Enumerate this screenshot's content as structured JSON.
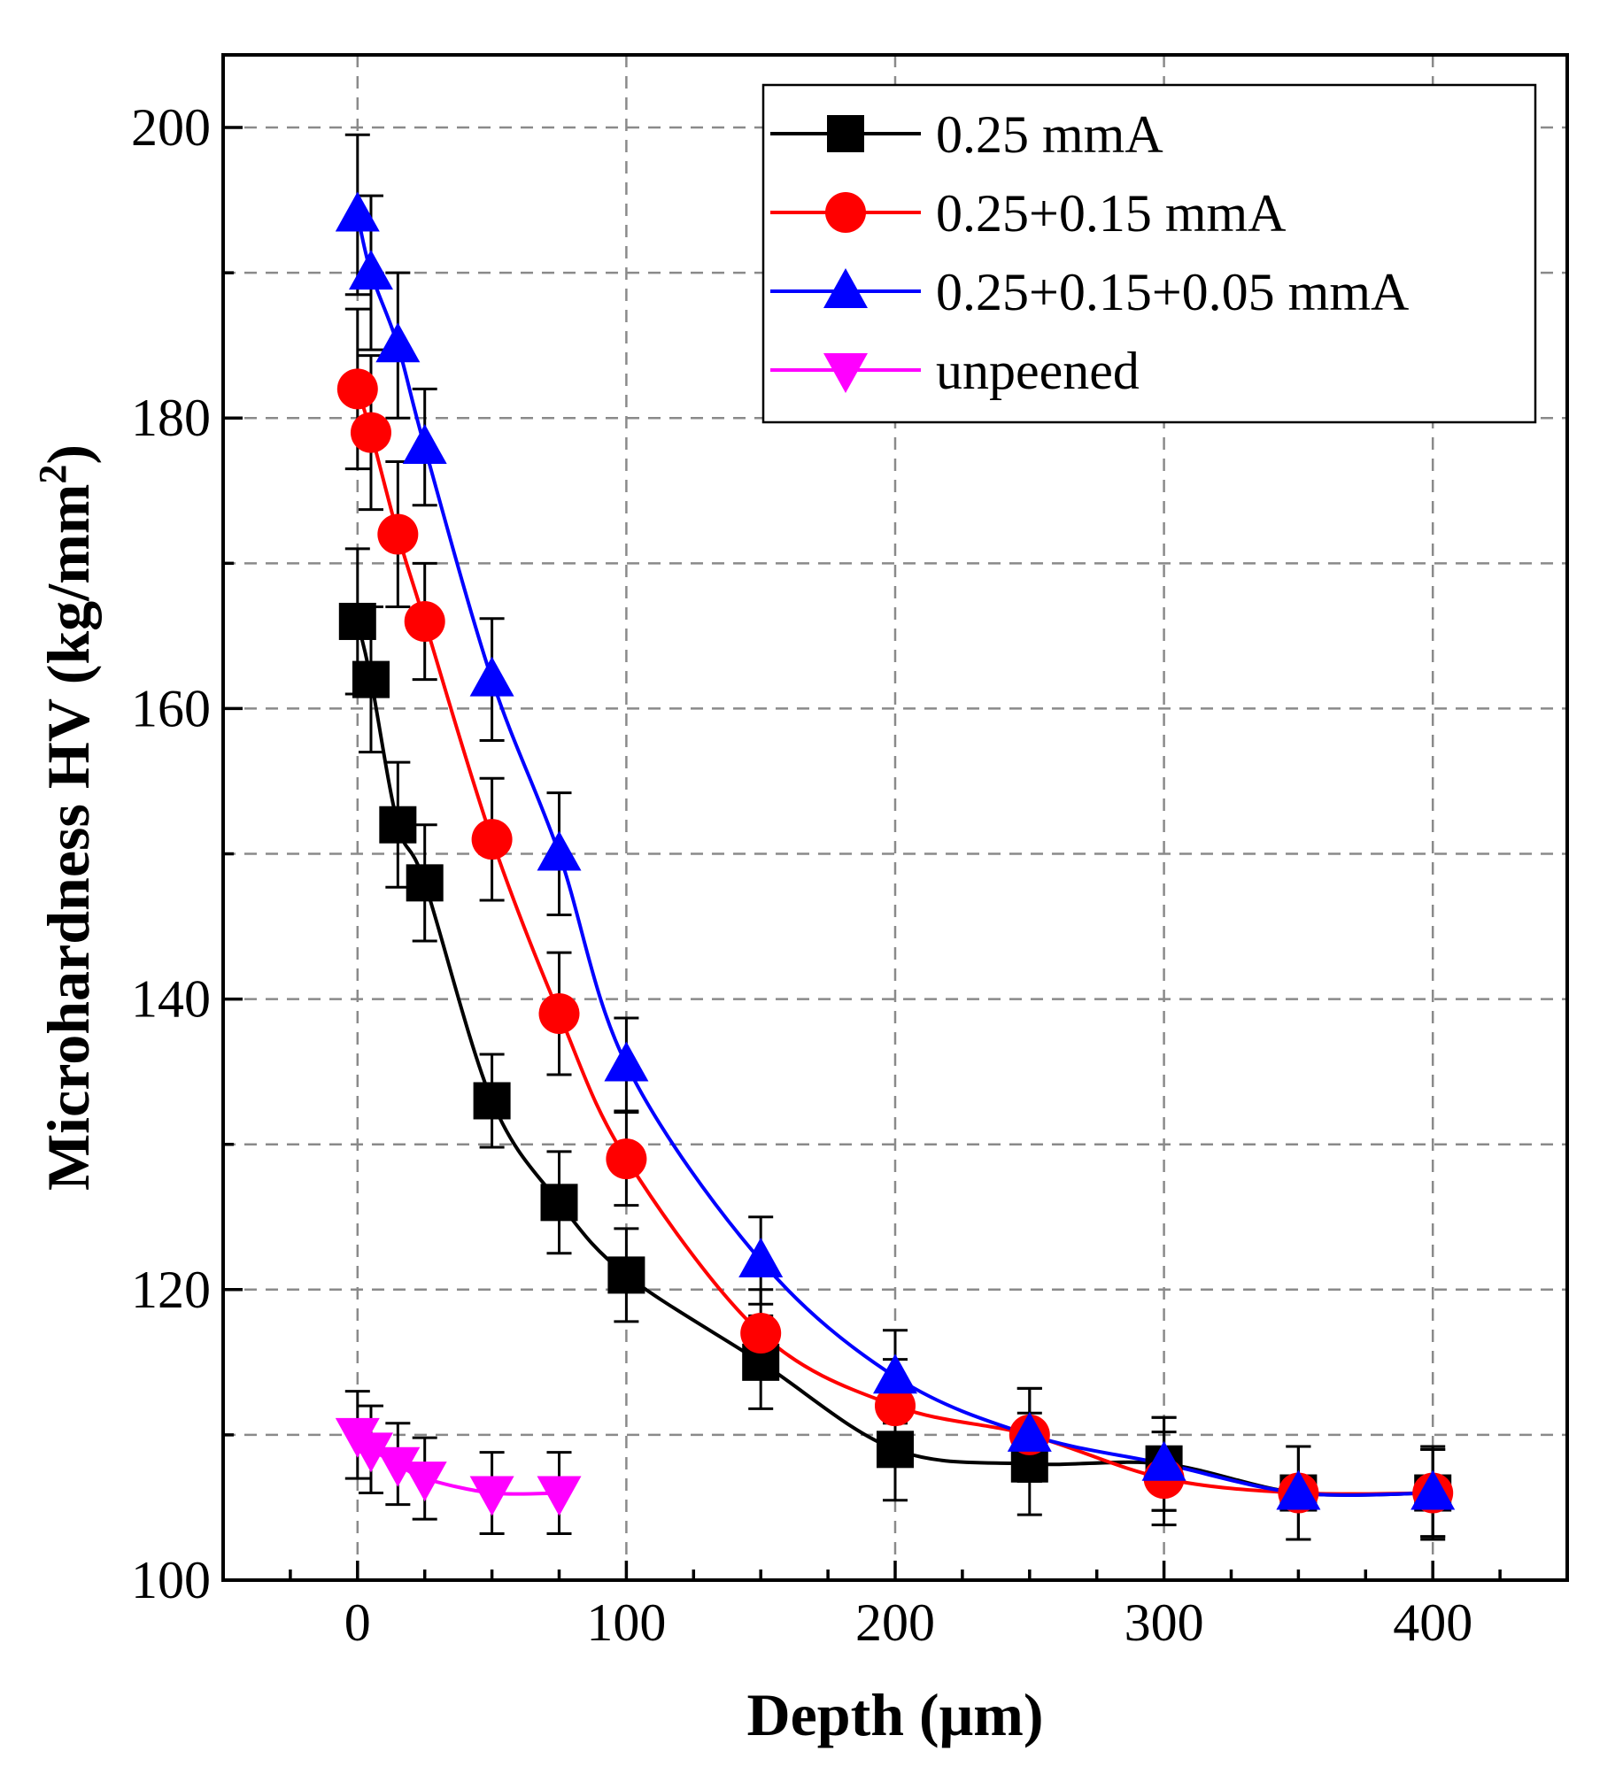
{
  "chart_data": {
    "type": "line",
    "title": "",
    "xlabel": "Depth (μm)",
    "ylabel_main": "Microhardness HV (kg/mm",
    "ylabel_sup": "2",
    "ylabel_end": ")",
    "xlim": [
      -50,
      450
    ],
    "ylim": [
      100,
      205
    ],
    "xticks": [
      0,
      100,
      200,
      300,
      400
    ],
    "xtick_labels": [
      "0",
      "100",
      "200",
      "300",
      "400"
    ],
    "xminor": [
      -25,
      25,
      50,
      75,
      125,
      150,
      175,
      225,
      250,
      275,
      325,
      350,
      375,
      425
    ],
    "yticks": [
      100,
      120,
      140,
      160,
      180,
      200
    ],
    "ytick_labels": [
      "100",
      "120",
      "140",
      "160",
      "180",
      "200"
    ],
    "yminor": [
      110,
      130,
      150,
      170,
      190
    ],
    "grid": true,
    "legend_position": "top-right",
    "series": [
      {
        "name": "0.25 mmA",
        "marker": "square",
        "color": "#000000",
        "x": [
          0,
          5,
          15,
          25,
          50,
          75,
          100,
          150,
          200,
          250,
          300,
          350,
          400
        ],
        "y": [
          166,
          162,
          152,
          148,
          133,
          126,
          121,
          115,
          109,
          108,
          108,
          106,
          106
        ],
        "err": [
          5,
          5,
          4.3,
          4,
          3.2,
          3.5,
          3.2,
          3.2,
          3.5,
          3.5,
          3.2,
          3.2,
          3.2
        ]
      },
      {
        "name": "0.25+0.15 mmA",
        "marker": "circle",
        "color": "#ff0000",
        "x": [
          0,
          5,
          15,
          25,
          50,
          75,
          100,
          150,
          200,
          250,
          300,
          350,
          400
        ],
        "y": [
          182,
          179,
          172,
          166,
          151,
          139,
          129,
          117,
          112,
          110,
          107,
          106,
          106
        ],
        "err": [
          5.5,
          5.3,
          5,
          4,
          4.2,
          4.2,
          3.2,
          3,
          3.2,
          3.2,
          3.2,
          3.2,
          3
        ]
      },
      {
        "name": "0.25+0.15+0.05 mmA",
        "marker": "triangle-up",
        "color": "#0000ff",
        "x": [
          0,
          5,
          15,
          25,
          50,
          75,
          100,
          150,
          200,
          250,
          300,
          350,
          400
        ],
        "y": [
          194,
          190,
          185,
          178,
          162,
          150,
          135.5,
          122,
          114,
          110,
          108,
          106,
          106
        ],
        "err": [
          5.5,
          5.3,
          5,
          4,
          4.2,
          4.2,
          3.2,
          3,
          3.2,
          3.2,
          3.2,
          3.2,
          3
        ]
      },
      {
        "name": "unpeened",
        "marker": "triangle-down",
        "color": "#ff00ff",
        "x": [
          0,
          5,
          15,
          25,
          50,
          75
        ],
        "y": [
          110,
          109,
          108,
          107,
          106,
          106
        ],
        "err": [
          3,
          3,
          2.8,
          2.8,
          2.8,
          2.8
        ]
      }
    ]
  }
}
